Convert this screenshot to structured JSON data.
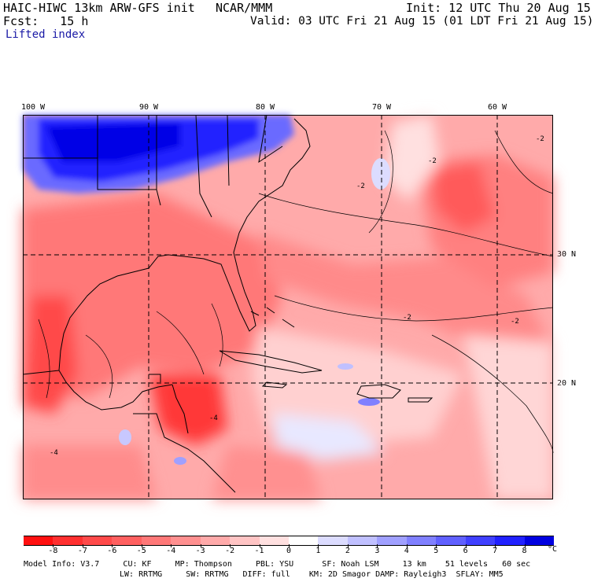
{
  "header": {
    "model": "HAIC-HIWC 13km ARW-GFS init",
    "org": "NCAR/MMM",
    "init": "Init: 12 UTC Thu 20 Aug 15",
    "fcst": "Fcst:   15 h",
    "valid": "Valid: 03 UTC Fri 21 Aug 15 (01 LDT Fri 21 Aug 15)",
    "field": "Lifted index"
  },
  "lon_labels": [
    "100 W",
    "90 W",
    "80 W",
    "70 W",
    "60 W"
  ],
  "lat_labels": [
    "30 N",
    "20 N"
  ],
  "colorbar": {
    "labels": [
      "-8",
      "-7",
      "-6",
      "-5",
      "-4",
      "-3",
      "-2",
      "-1",
      "0",
      "1",
      "2",
      "3",
      "4",
      "5",
      "6",
      "7",
      "8"
    ],
    "unit": "°C",
    "colors": [
      "#ff1010",
      "#ff3030",
      "#ff4a4a",
      "#ff6060",
      "#ff7878",
      "#ff9090",
      "#ffaaaa",
      "#ffc4c4",
      "#ffe0e0",
      "#ffffff",
      "#dcdcff",
      "#c0c0ff",
      "#a0a0ff",
      "#8080ff",
      "#6060ff",
      "#4040ff",
      "#2020ff",
      "#0000e0"
    ]
  },
  "footer": {
    "line1": "Model Info: V3.7     CU: KF     MP: Thompson     PBL: YSU      SF: Noah LSM     13 km    51 levels   60 sec",
    "line2": "LW: RRTMG     SW: RRTMG   DIFF: full    KM: 2D Smagor DAMP: Rayleigh3  SFLAY: MM5"
  },
  "contour_labels": [
    "-2",
    "-2",
    "-2",
    "-2",
    "-2",
    "-4",
    "-4"
  ]
}
